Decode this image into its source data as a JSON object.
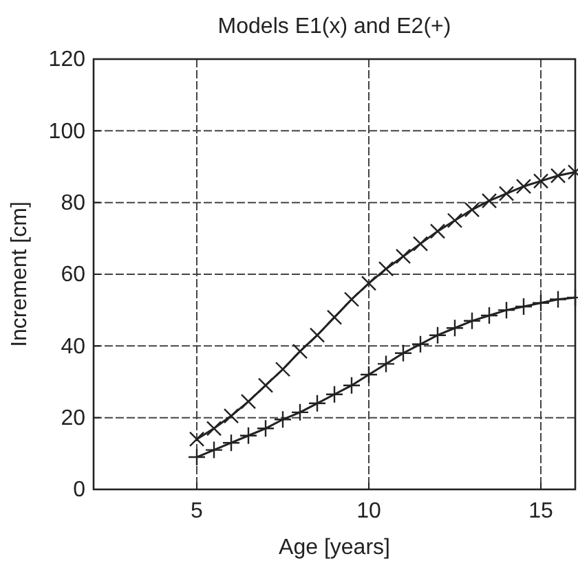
{
  "chart_data": {
    "type": "line",
    "title": "Models E1(x) and E2(+)",
    "xlabel": "Age [years]",
    "ylabel": "Increment [cm]",
    "xlim": [
      2,
      16
    ],
    "xticks": [
      5,
      10,
      15
    ],
    "ylim": [
      0,
      120
    ],
    "yticks": [
      0,
      20,
      40,
      60,
      80,
      100,
      120
    ],
    "grid": true,
    "x": [
      5,
      5.5,
      6,
      6.5,
      7,
      7.5,
      8,
      8.5,
      9,
      9.5,
      10,
      10.5,
      11,
      11.5,
      12,
      12.5,
      13,
      13.5,
      14,
      14.5,
      15,
      15.5,
      16
    ],
    "series": [
      {
        "color": "#222222",
        "marker": "x",
        "values": [
          14,
          17,
          20.5,
          24.5,
          29,
          33.5,
          38.5,
          43,
          48,
          53,
          57.5,
          61.5,
          65,
          68.5,
          72,
          75,
          78,
          80.5,
          82.5,
          84.5,
          86,
          87.5,
          88.5
        ]
      },
      {
        "color": "#222222",
        "marker": "cross",
        "values": [
          9,
          11,
          13,
          15,
          17,
          19.5,
          21.5,
          24,
          26.5,
          29,
          32,
          35,
          38,
          40.5,
          43,
          45,
          47,
          48.5,
          50,
          51,
          52,
          53,
          53.5
        ]
      }
    ]
  }
}
